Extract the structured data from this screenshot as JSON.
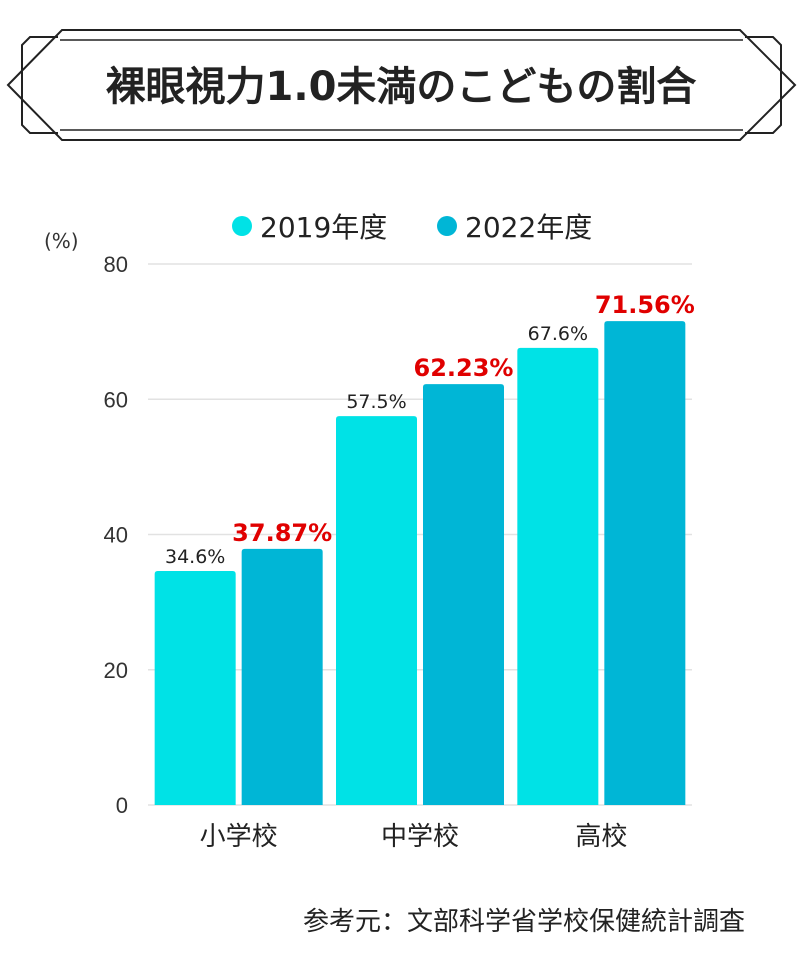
{
  "chart_data": {
    "type": "bar",
    "title": "裸眼視力1.0未満のこどもの割合",
    "ylabel": "(%)",
    "categories": [
      "小学校",
      "中学校",
      "高校"
    ],
    "series": [
      {
        "name": "2019年度",
        "values": [
          34.6,
          57.5,
          67.6
        ],
        "labels": [
          "34.6%",
          "57.5%",
          "67.6%"
        ],
        "color": "#00E2E6"
      },
      {
        "name": "2022年度",
        "values": [
          37.87,
          62.23,
          71.56
        ],
        "labels": [
          "37.87%",
          "62.23%",
          "71.56%"
        ],
        "color": "#00B6D6"
      }
    ],
    "ylim": [
      0,
      80
    ],
    "yticks": [
      "0",
      "20",
      "40",
      "60",
      "80"
    ],
    "grid": true,
    "legend": "top",
    "label_colors": {
      "2019": "#222222",
      "2022": "#E00000"
    },
    "source": "参考元：文部科学省学校保健統計調査"
  }
}
